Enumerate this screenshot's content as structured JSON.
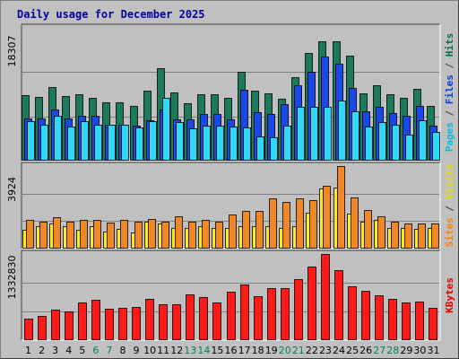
{
  "chart_data": {
    "type": "bar",
    "title": "Daily usage for December 2025",
    "categories": [
      "1",
      "2",
      "3",
      "4",
      "5",
      "6",
      "7",
      "8",
      "9",
      "10",
      "11",
      "12",
      "13",
      "14",
      "15",
      "16",
      "17",
      "18",
      "19",
      "20",
      "21",
      "22",
      "23",
      "24",
      "25",
      "26",
      "27",
      "28",
      "29",
      "30",
      "31"
    ],
    "weekend_days": [
      "6",
      "7",
      "13",
      "14",
      "20",
      "21",
      "27",
      "28"
    ],
    "panels": [
      {
        "id": "top",
        "max_label": "18307",
        "ylim": [
          0,
          18307
        ],
        "axis_labels": [
          {
            "text": "Pages",
            "color": "#00c0e0"
          },
          {
            "text": " / ",
            "color": "#404040"
          },
          {
            "text": "Files",
            "color": "#0040e0"
          },
          {
            "text": " / ",
            "color": "#404040"
          },
          {
            "text": "Hits",
            "color": "#007040"
          }
        ],
        "series": [
          {
            "name": "Hits",
            "color": "#1a7a5a",
            "values": [
              9000,
              8800,
              10100,
              8900,
              9200,
              8700,
              8100,
              8100,
              7500,
              9600,
              12800,
              9400,
              7900,
              9100,
              9100,
              8600,
              12300,
              9700,
              9300,
              8500,
              11500,
              14800,
              16500,
              16500,
              14500,
              9300,
              10400,
              9100,
              8700,
              9900,
              7500
            ]
          },
          {
            "name": "Files",
            "color": "#1a48e8",
            "values": [
              5800,
              5800,
              7100,
              5800,
              6200,
              6200,
              5000,
              5000,
              4800,
              5600,
              7100,
              5700,
              5700,
              6400,
              6400,
              5700,
              9800,
              6700,
              6400,
              7800,
              10400,
              12300,
              14300,
              13400,
              10000,
              6800,
              7400,
              6600,
              6200,
              7600,
              4800
            ]
          },
          {
            "name": "Pages",
            "color": "#30d8f8",
            "values": [
              5400,
              4900,
              6200,
              4700,
              5400,
              5000,
              5000,
              4900,
              4600,
              5400,
              8600,
              5300,
              4500,
              4800,
              4800,
              4700,
              4600,
              3300,
              3200,
              4800,
              7400,
              7400,
              7400,
              8300,
              6800,
              4700,
              5300,
              4900,
              3600,
              5600,
              4000
            ]
          }
        ]
      },
      {
        "id": "middle",
        "max_label": "3924",
        "ylim": [
          0,
          3924
        ],
        "axis_labels": [
          {
            "text": "Sites",
            "color": "#ff8000"
          },
          {
            "text": " / ",
            "color": "#404040"
          },
          {
            "text": "Visits",
            "color": "#e0e000"
          }
        ],
        "series": [
          {
            "name": "Visits",
            "color": "#ffea20",
            "values": [
              900,
              1050,
              1200,
              1050,
              900,
              1050,
              800,
              950,
              750,
              1300,
              1200,
              1000,
              1000,
              1050,
              1000,
              1000,
              1050,
              1050,
              1050,
              1000,
              1050,
              1700,
              2850,
              2900,
              1650,
              1300,
              1350,
              1000,
              1000,
              950,
              1000
            ]
          },
          {
            "name": "Sites",
            "color": "#f08828",
            "values": [
              1350,
              1300,
              1500,
              1300,
              1350,
              1350,
              1250,
              1350,
              1300,
              1400,
              1300,
              1550,
              1300,
              1350,
              1300,
              1600,
              1800,
              1800,
              2400,
              2200,
              2400,
              2300,
              3000,
              3924,
              2450,
              1850,
              1550,
              1300,
              1200,
              1200,
              1200
            ]
          }
        ]
      },
      {
        "id": "bottom",
        "max_label": "1332830",
        "ylim": [
          0,
          1332830
        ],
        "axis_labels": [
          {
            "text": "KBytes",
            "color": "#e00000"
          }
        ],
        "series": [
          {
            "name": "KBytes",
            "color": "#ff1a1a",
            "values": [
              330000,
              370000,
              470000,
              450000,
              580000,
              630000,
              480000,
              500000,
              510000,
              640000,
              550000,
              560000,
              710000,
              670000,
              590000,
              750000,
              860000,
              680000,
              800000,
              800000,
              940000,
              1140000,
              1332830,
              1080000,
              830000,
              760000,
              690000,
              640000,
              580000,
              600000,
              500000
            ]
          }
        ]
      }
    ]
  }
}
